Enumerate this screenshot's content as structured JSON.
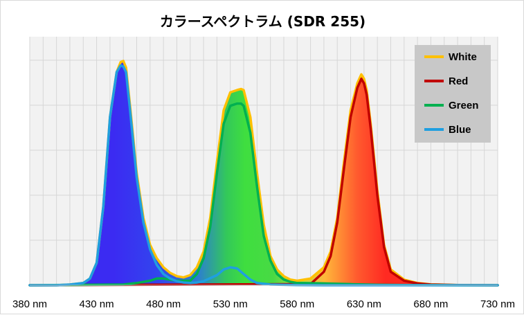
{
  "chart_data": {
    "type": "area",
    "title": "カラースペクトラム (SDR 255)",
    "xlabel": "",
    "ylabel": "",
    "xlim": [
      380,
      730
    ],
    "ylim": [
      0,
      1
    ],
    "x_ticks": [
      "380 nm",
      "430 nm",
      "480 nm",
      "530 nm",
      "580 nm",
      "630 nm",
      "680 nm",
      "730 nm"
    ],
    "grid": true,
    "legend_position": "top-right",
    "series": [
      {
        "name": "White",
        "color": "#ffc000",
        "x": [
          380,
          400,
          410,
          420,
          425,
          430,
          435,
          440,
          445,
          448,
          450,
          452,
          455,
          460,
          465,
          470,
          475,
          480,
          485,
          490,
          495,
          500,
          505,
          510,
          515,
          520,
          525,
          530,
          535,
          538,
          540,
          545,
          550,
          555,
          560,
          565,
          570,
          575,
          580,
          590,
          600,
          605,
          610,
          615,
          620,
          625,
          628,
          630,
          632,
          635,
          640,
          645,
          650,
          660,
          670,
          680,
          700,
          730
        ],
        "y": [
          0,
          0,
          0.003,
          0.01,
          0.03,
          0.1,
          0.35,
          0.75,
          0.95,
          0.995,
          1.0,
          0.97,
          0.8,
          0.5,
          0.3,
          0.18,
          0.12,
          0.08,
          0.055,
          0.04,
          0.035,
          0.045,
          0.08,
          0.15,
          0.3,
          0.55,
          0.78,
          0.86,
          0.87,
          0.875,
          0.87,
          0.75,
          0.5,
          0.27,
          0.13,
          0.07,
          0.04,
          0.025,
          0.02,
          0.03,
          0.08,
          0.15,
          0.3,
          0.55,
          0.78,
          0.9,
          0.94,
          0.92,
          0.87,
          0.72,
          0.42,
          0.18,
          0.07,
          0.025,
          0.01,
          0.004,
          0.001,
          0
        ]
      },
      {
        "name": "Red",
        "color": "#c00000",
        "x": [
          380,
          590,
          600,
          605,
          610,
          615,
          620,
          625,
          628,
          630,
          632,
          635,
          640,
          645,
          650,
          660,
          670,
          680,
          700,
          730
        ],
        "y": [
          0,
          0.005,
          0.06,
          0.13,
          0.28,
          0.52,
          0.75,
          0.88,
          0.92,
          0.9,
          0.85,
          0.7,
          0.4,
          0.17,
          0.06,
          0.02,
          0.008,
          0.003,
          0.001,
          0
        ]
      },
      {
        "name": "Green",
        "color": "#00b050",
        "x": [
          380,
          450,
          460,
          470,
          475,
          480,
          485,
          490,
          500,
          505,
          510,
          515,
          520,
          525,
          530,
          535,
          538,
          540,
          545,
          550,
          555,
          560,
          565,
          570,
          575,
          580,
          600,
          620,
          640,
          660,
          700,
          730
        ],
        "y": [
          0,
          0.003,
          0.01,
          0.02,
          0.03,
          0.03,
          0.025,
          0.02,
          0.02,
          0.05,
          0.12,
          0.26,
          0.5,
          0.72,
          0.8,
          0.81,
          0.81,
          0.8,
          0.68,
          0.44,
          0.22,
          0.11,
          0.05,
          0.025,
          0.015,
          0.01,
          0.008,
          0.005,
          0.002,
          0.001,
          0,
          0
        ]
      },
      {
        "name": "Blue",
        "color": "#1f9fe0",
        "x": [
          380,
          400,
          410,
          420,
          425,
          430,
          435,
          440,
          445,
          448,
          450,
          452,
          455,
          460,
          465,
          470,
          475,
          480,
          485,
          490,
          495,
          500,
          505,
          510,
          520,
          525,
          530,
          535,
          540,
          545,
          550,
          560,
          580,
          600,
          620,
          660,
          700,
          730
        ],
        "y": [
          0,
          0,
          0.003,
          0.01,
          0.03,
          0.1,
          0.35,
          0.75,
          0.95,
          0.98,
          0.975,
          0.95,
          0.78,
          0.48,
          0.28,
          0.16,
          0.09,
          0.05,
          0.03,
          0.018,
          0.012,
          0.01,
          0.012,
          0.018,
          0.045,
          0.07,
          0.08,
          0.075,
          0.05,
          0.025,
          0.01,
          0.003,
          0.001,
          0,
          0,
          0,
          0,
          0
        ]
      }
    ]
  }
}
